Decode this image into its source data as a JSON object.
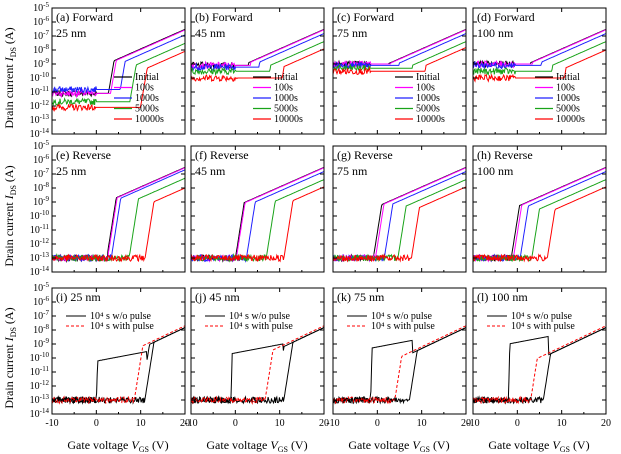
{
  "figure": {
    "ylabel_main": "Drain current",
    "ylabel_sym": "I",
    "ylabel_sub": "DS",
    "ylabel_unit": " (A)",
    "xlabel_main": "Gate voltage",
    "xlabel_sym": "V",
    "xlabel_sub": "GS",
    "xlabel_unit": " (V)"
  },
  "colors": {
    "Initial": "#000000",
    "100s": "#ff00ff",
    "1000s": "#2020ff",
    "5000s": "#19a319",
    "10000s": "#ff0000",
    "w/o pulse": "#000000",
    "with pulse": "#ff0000"
  },
  "axes": {
    "x_ticks": [
      "-10",
      "0",
      "10",
      "20"
    ],
    "y_exponents": [
      "-14",
      "-13",
      "-12",
      "-11",
      "-10",
      "-9",
      "-8",
      "-7",
      "-6",
      "-5"
    ],
    "y_base": "10"
  },
  "chart_data": [
    {
      "type": "line",
      "row": 0,
      "col": 0,
      "label": "(a) Forward",
      "thickness": "25 nm",
      "yscale": "log",
      "xlim": [
        -10,
        20
      ],
      "ylim": [
        1e-14,
        1e-05
      ],
      "legend": {
        "entries": [
          "Initial",
          "100s",
          "1000s",
          "5000s",
          "10000s"
        ]
      },
      "series": [
        {
          "name": "Initial",
          "curve": {
            "von": 0,
            "vk": 4,
            "ion": 3e-07,
            "ss": 0.55,
            "slope": 0.14,
            "tail": 8e-12
          }
        },
        {
          "name": "100s",
          "curve": {
            "von": 0,
            "vk": 4.5,
            "ion": 2.7e-07,
            "ss": 0.55,
            "slope": 0.14,
            "tail": 8e-12
          }
        },
        {
          "name": "1000s",
          "curve": {
            "von": 0,
            "vk": 6.5,
            "ion": 1.2e-07,
            "ss": 0.55,
            "slope": 0.14,
            "tail": 1.5e-11
          }
        },
        {
          "name": "5000s",
          "curve": {
            "von": 0,
            "vk": 9,
            "ion": 3e-08,
            "ss": 0.55,
            "slope": 0.14,
            "tail": 2e-12
          }
        },
        {
          "name": "10000s",
          "curve": {
            "von": 0,
            "vk": 11.5,
            "ion": 8e-09,
            "ss": 0.55,
            "slope": 0.14,
            "tail": 8e-13
          }
        }
      ]
    },
    {
      "type": "line",
      "row": 0,
      "col": 1,
      "label": "(b) Forward",
      "thickness": "45 nm",
      "yscale": "log",
      "xlim": [
        -10,
        20
      ],
      "ylim": [
        1e-14,
        1e-05
      ],
      "legend": {
        "entries": [
          "Initial",
          "100s",
          "1000s",
          "5000s",
          "10000s"
        ]
      },
      "series": [
        {
          "name": "Initial",
          "curve": {
            "von": 0,
            "vk": 3,
            "ion": 3e-07,
            "ss": 0.5,
            "slope": 0.14,
            "tail": 8e-10
          }
        },
        {
          "name": "100s",
          "curve": {
            "von": 0,
            "vk": 3.5,
            "ion": 2.8e-07,
            "ss": 0.5,
            "slope": 0.14,
            "tail": 8e-10
          }
        },
        {
          "name": "1000s",
          "curve": {
            "von": 0,
            "vk": 5.5,
            "ion": 1.5e-07,
            "ss": 0.5,
            "slope": 0.14,
            "tail": 6e-10
          }
        },
        {
          "name": "5000s",
          "curve": {
            "von": 0.2,
            "vk": 8,
            "ion": 4e-08,
            "ss": 0.5,
            "slope": 0.14,
            "tail": 3e-10
          }
        },
        {
          "name": "10000s",
          "curve": {
            "von": 0.5,
            "vk": 11,
            "ion": 1.2e-08,
            "ss": 0.5,
            "slope": 0.14,
            "tail": 1e-10
          }
        }
      ]
    },
    {
      "type": "line",
      "row": 0,
      "col": 2,
      "label": "(c) Forward",
      "thickness": "75 nm",
      "yscale": "log",
      "xlim": [
        -10,
        20
      ],
      "ylim": [
        1e-14,
        1e-05
      ],
      "legend": {
        "entries": [
          "Initial",
          "100s",
          "1000s",
          "5000s",
          "10000s"
        ]
      },
      "series": [
        {
          "name": "Initial",
          "curve": {
            "von": -1.5,
            "vk": 2.5,
            "ion": 3e-07,
            "ss": 0.5,
            "slope": 0.14,
            "tail": 1e-09
          }
        },
        {
          "name": "100s",
          "curve": {
            "von": -1.5,
            "vk": 3,
            "ion": 2.8e-07,
            "ss": 0.5,
            "slope": 0.14,
            "tail": 1e-09
          }
        },
        {
          "name": "1000s",
          "curve": {
            "von": -1.5,
            "vk": 5,
            "ion": 1.5e-07,
            "ss": 0.5,
            "slope": 0.14,
            "tail": 8e-10
          }
        },
        {
          "name": "5000s",
          "curve": {
            "von": -1.5,
            "vk": 8,
            "ion": 4e-08,
            "ss": 0.5,
            "slope": 0.14,
            "tail": 5e-10
          }
        },
        {
          "name": "10000s",
          "curve": {
            "von": -1.5,
            "vk": 11,
            "ion": 1.5e-08,
            "ss": 0.5,
            "slope": 0.14,
            "tail": 3e-10
          }
        }
      ]
    },
    {
      "type": "line",
      "row": 0,
      "col": 3,
      "label": "(d) Forward",
      "thickness": "100 nm",
      "yscale": "log",
      "xlim": [
        -10,
        20
      ],
      "ylim": [
        1e-14,
        1e-05
      ],
      "legend": {
        "entries": [
          "Initial",
          "100s",
          "1000s",
          "5000s",
          "10000s"
        ]
      },
      "series": [
        {
          "name": "Initial",
          "curve": {
            "von": -0.5,
            "vk": 3,
            "ion": 3e-07,
            "ss": 0.5,
            "slope": 0.14,
            "tail": 1e-09
          }
        },
        {
          "name": "100s",
          "curve": {
            "von": -0.5,
            "vk": 3.5,
            "ion": 2.8e-07,
            "ss": 0.5,
            "slope": 0.14,
            "tail": 1e-09
          }
        },
        {
          "name": "1000s",
          "curve": {
            "von": -0.5,
            "vk": 5.5,
            "ion": 1.5e-07,
            "ss": 0.5,
            "slope": 0.14,
            "tail": 8e-10
          }
        },
        {
          "name": "5000s",
          "curve": {
            "von": -0.5,
            "vk": 8,
            "ion": 4e-08,
            "ss": 0.5,
            "slope": 0.14,
            "tail": 3e-10
          }
        },
        {
          "name": "10000s",
          "curve": {
            "von": -0.5,
            "vk": 11,
            "ion": 1e-08,
            "ss": 0.5,
            "slope": 0.14,
            "tail": 1e-10
          }
        }
      ]
    },
    {
      "type": "line",
      "row": 1,
      "col": 0,
      "label": "(e) Reverse",
      "thickness": "25 nm",
      "yscale": "log",
      "xlim": [
        -10,
        20
      ],
      "ylim": [
        1e-14,
        1e-05
      ],
      "series": [
        {
          "name": "Initial",
          "curve": {
            "von": 2.5,
            "vk": 4.5,
            "ion": 3e-07,
            "ss": 0.5,
            "slope": 0.14,
            "tail": 1e-13
          }
        },
        {
          "name": "100s",
          "curve": {
            "von": 2.7,
            "vk": 4.7,
            "ion": 2.8e-07,
            "ss": 0.5,
            "slope": 0.14,
            "tail": 1e-13
          }
        },
        {
          "name": "1000s",
          "curve": {
            "von": 3.5,
            "vk": 5.5,
            "ion": 2e-07,
            "ss": 0.5,
            "slope": 0.14,
            "tail": 1e-13
          }
        },
        {
          "name": "5000s",
          "curve": {
            "von": 7.5,
            "vk": 9.5,
            "ion": 5e-08,
            "ss": 0.5,
            "slope": 0.14,
            "tail": 1e-13
          }
        },
        {
          "name": "10000s",
          "curve": {
            "von": 11,
            "vk": 13,
            "ion": 1e-08,
            "ss": 0.5,
            "slope": 0.14,
            "tail": 1e-13
          }
        }
      ]
    },
    {
      "type": "line",
      "row": 1,
      "col": 1,
      "label": "(f) Reverse",
      "thickness": "45 nm",
      "yscale": "log",
      "xlim": [
        -10,
        20
      ],
      "ylim": [
        1e-14,
        1e-05
      ],
      "series": [
        {
          "name": "Initial",
          "curve": {
            "von": 0,
            "vk": 2,
            "ion": 3e-07,
            "ss": 0.5,
            "slope": 0.14,
            "tail": 1e-13
          }
        },
        {
          "name": "100s",
          "curve": {
            "von": 0.2,
            "vk": 2.2,
            "ion": 2.8e-07,
            "ss": 0.5,
            "slope": 0.14,
            "tail": 1e-13
          }
        },
        {
          "name": "1000s",
          "curve": {
            "von": 2.5,
            "vk": 4.5,
            "ion": 1.5e-07,
            "ss": 0.5,
            "slope": 0.14,
            "tail": 1e-13
          }
        },
        {
          "name": "5000s",
          "curve": {
            "von": 7,
            "vk": 9,
            "ion": 4e-08,
            "ss": 0.5,
            "slope": 0.14,
            "tail": 1e-13
          }
        },
        {
          "name": "10000s",
          "curve": {
            "von": 11,
            "vk": 13,
            "ion": 1.2e-08,
            "ss": 0.5,
            "slope": 0.14,
            "tail": 1e-13
          }
        }
      ]
    },
    {
      "type": "line",
      "row": 1,
      "col": 2,
      "label": "(g) Reverse",
      "thickness": "75 nm",
      "yscale": "log",
      "xlim": [
        -10,
        20
      ],
      "ylim": [
        1e-14,
        1e-05
      ],
      "series": [
        {
          "name": "Initial",
          "curve": {
            "von": -1,
            "vk": 1,
            "ion": 3e-07,
            "ss": 0.5,
            "slope": 0.14,
            "tail": 1e-13
          }
        },
        {
          "name": "100s",
          "curve": {
            "von": -0.5,
            "vk": 1.5,
            "ion": 2.8e-07,
            "ss": 0.5,
            "slope": 0.14,
            "tail": 1e-13
          }
        },
        {
          "name": "1000s",
          "curve": {
            "von": 1.5,
            "vk": 3.5,
            "ion": 1.5e-07,
            "ss": 0.5,
            "slope": 0.14,
            "tail": 1e-13
          }
        },
        {
          "name": "5000s",
          "curve": {
            "von": 4.5,
            "vk": 6.5,
            "ion": 4e-08,
            "ss": 0.5,
            "slope": 0.14,
            "tail": 1e-13
          }
        },
        {
          "name": "10000s",
          "curve": {
            "von": 7.5,
            "vk": 9.5,
            "ion": 1.2e-08,
            "ss": 0.5,
            "slope": 0.14,
            "tail": 1e-13
          }
        }
      ]
    },
    {
      "type": "line",
      "row": 1,
      "col": 3,
      "label": "(h) Reverse",
      "thickness": "100 nm",
      "yscale": "log",
      "xlim": [
        -10,
        20
      ],
      "ylim": [
        1e-14,
        1e-05
      ],
      "series": [
        {
          "name": "Initial",
          "curve": {
            "von": -1.5,
            "vk": 0.5,
            "ion": 3e-07,
            "ss": 0.5,
            "slope": 0.14,
            "tail": 1e-13
          }
        },
        {
          "name": "100s",
          "curve": {
            "von": -1,
            "vk": 1,
            "ion": 2.8e-07,
            "ss": 0.5,
            "slope": 0.14,
            "tail": 1e-13
          }
        },
        {
          "name": "1000s",
          "curve": {
            "von": 0.5,
            "vk": 2.5,
            "ion": 1.5e-07,
            "ss": 0.5,
            "slope": 0.14,
            "tail": 1e-13
          }
        },
        {
          "name": "5000s",
          "curve": {
            "von": 3,
            "vk": 5,
            "ion": 4e-08,
            "ss": 0.5,
            "slope": 0.14,
            "tail": 1e-13
          }
        },
        {
          "name": "10000s",
          "curve": {
            "von": 6.5,
            "vk": 8.5,
            "ion": 1.2e-08,
            "ss": 0.5,
            "slope": 0.14,
            "tail": 1e-13
          }
        }
      ]
    },
    {
      "type": "line",
      "row": 2,
      "col": 0,
      "label": "(i) 25 nm",
      "thickness": "",
      "yscale": "log",
      "xlim": [
        -10,
        20
      ],
      "ylim": [
        1e-14,
        1e-05
      ],
      "legend": {
        "entries": [
          "10⁴ s w/o pulse",
          "10⁴ s with pulse"
        ]
      },
      "series": [
        {
          "name": "w/o pulse",
          "loop": true,
          "fwd": {
            "von": 0,
            "plateau": 6e-11,
            "vk": 12,
            "ion": 1.5e-08,
            "ss": 0.5,
            "slope": 0.15,
            "tail": 1e-13
          },
          "rev": {
            "von": 11,
            "vk": 13,
            "ion": 1.5e-08,
            "ss": 0.5,
            "slope": 0.15,
            "tail": 1e-13
          }
        },
        {
          "name": "with pulse",
          "dashed": true,
          "fwd": {
            "von": 8.5,
            "vk": 10.5,
            "ion": 2e-08,
            "ss": 0.5,
            "slope": 0.15,
            "tail": 1e-13
          }
        }
      ]
    },
    {
      "type": "line",
      "row": 2,
      "col": 1,
      "label": "(j) 45 nm",
      "thickness": "",
      "yscale": "log",
      "xlim": [
        -10,
        20
      ],
      "ylim": [
        1e-14,
        1e-05
      ],
      "legend": {
        "entries": [
          "10⁴ s w/o pulse",
          "10⁴ s with pulse"
        ]
      },
      "series": [
        {
          "name": "w/o pulse",
          "loop": true,
          "fwd": {
            "von": -1,
            "plateau": 2e-10,
            "vk": 11,
            "ion": 1.5e-08,
            "ss": 0.5,
            "slope": 0.15,
            "tail": 1e-13
          },
          "rev": {
            "von": 11,
            "vk": 13,
            "ion": 1.5e-08,
            "ss": 0.5,
            "slope": 0.15,
            "tail": 1e-13
          }
        },
        {
          "name": "with pulse",
          "dashed": true,
          "fwd": {
            "von": 6.5,
            "vk": 8.5,
            "ion": 2e-08,
            "ss": 0.5,
            "slope": 0.15,
            "tail": 1e-13
          }
        }
      ]
    },
    {
      "type": "line",
      "row": 2,
      "col": 2,
      "label": "(k) 75 nm",
      "thickness": "",
      "yscale": "log",
      "xlim": [
        -10,
        20
      ],
      "ylim": [
        1e-14,
        1e-05
      ],
      "legend": {
        "entries": [
          "10⁴ s w/o pulse",
          "10⁴ s with pulse"
        ]
      },
      "series": [
        {
          "name": "w/o pulse",
          "loop": true,
          "fwd": {
            "von": -1.5,
            "plateau": 5e-10,
            "vk": 8,
            "ion": 1.5e-08,
            "ss": 0.5,
            "slope": 0.15,
            "tail": 1e-13
          },
          "rev": {
            "von": 7,
            "vk": 9,
            "ion": 1.5e-08,
            "ss": 0.5,
            "slope": 0.15,
            "tail": 1e-13
          }
        },
        {
          "name": "with pulse",
          "dashed": true,
          "fwd": {
            "von": 3.5,
            "vk": 5.5,
            "ion": 2e-08,
            "ss": 0.5,
            "slope": 0.15,
            "tail": 1e-13
          }
        }
      ]
    },
    {
      "type": "line",
      "row": 2,
      "col": 3,
      "label": "(l) 100 nm",
      "thickness": "",
      "yscale": "log",
      "xlim": [
        -10,
        20
      ],
      "ylim": [
        1e-14,
        1e-05
      ],
      "legend": {
        "entries": [
          "10⁴ s w/o pulse",
          "10⁴ s with pulse"
        ]
      },
      "series": [
        {
          "name": "w/o pulse",
          "loop": true,
          "fwd": {
            "von": -2,
            "plateau": 1e-09,
            "vk": 7,
            "ion": 1.5e-08,
            "ss": 0.5,
            "slope": 0.15,
            "tail": 1e-13
          },
          "rev": {
            "von": 5.5,
            "vk": 7.5,
            "ion": 1.5e-08,
            "ss": 0.5,
            "slope": 0.15,
            "tail": 1e-13
          }
        },
        {
          "name": "with pulse",
          "dashed": true,
          "fwd": {
            "von": 2.5,
            "vk": 4.5,
            "ion": 2e-08,
            "ss": 0.5,
            "slope": 0.15,
            "tail": 1e-13
          }
        }
      ]
    }
  ]
}
